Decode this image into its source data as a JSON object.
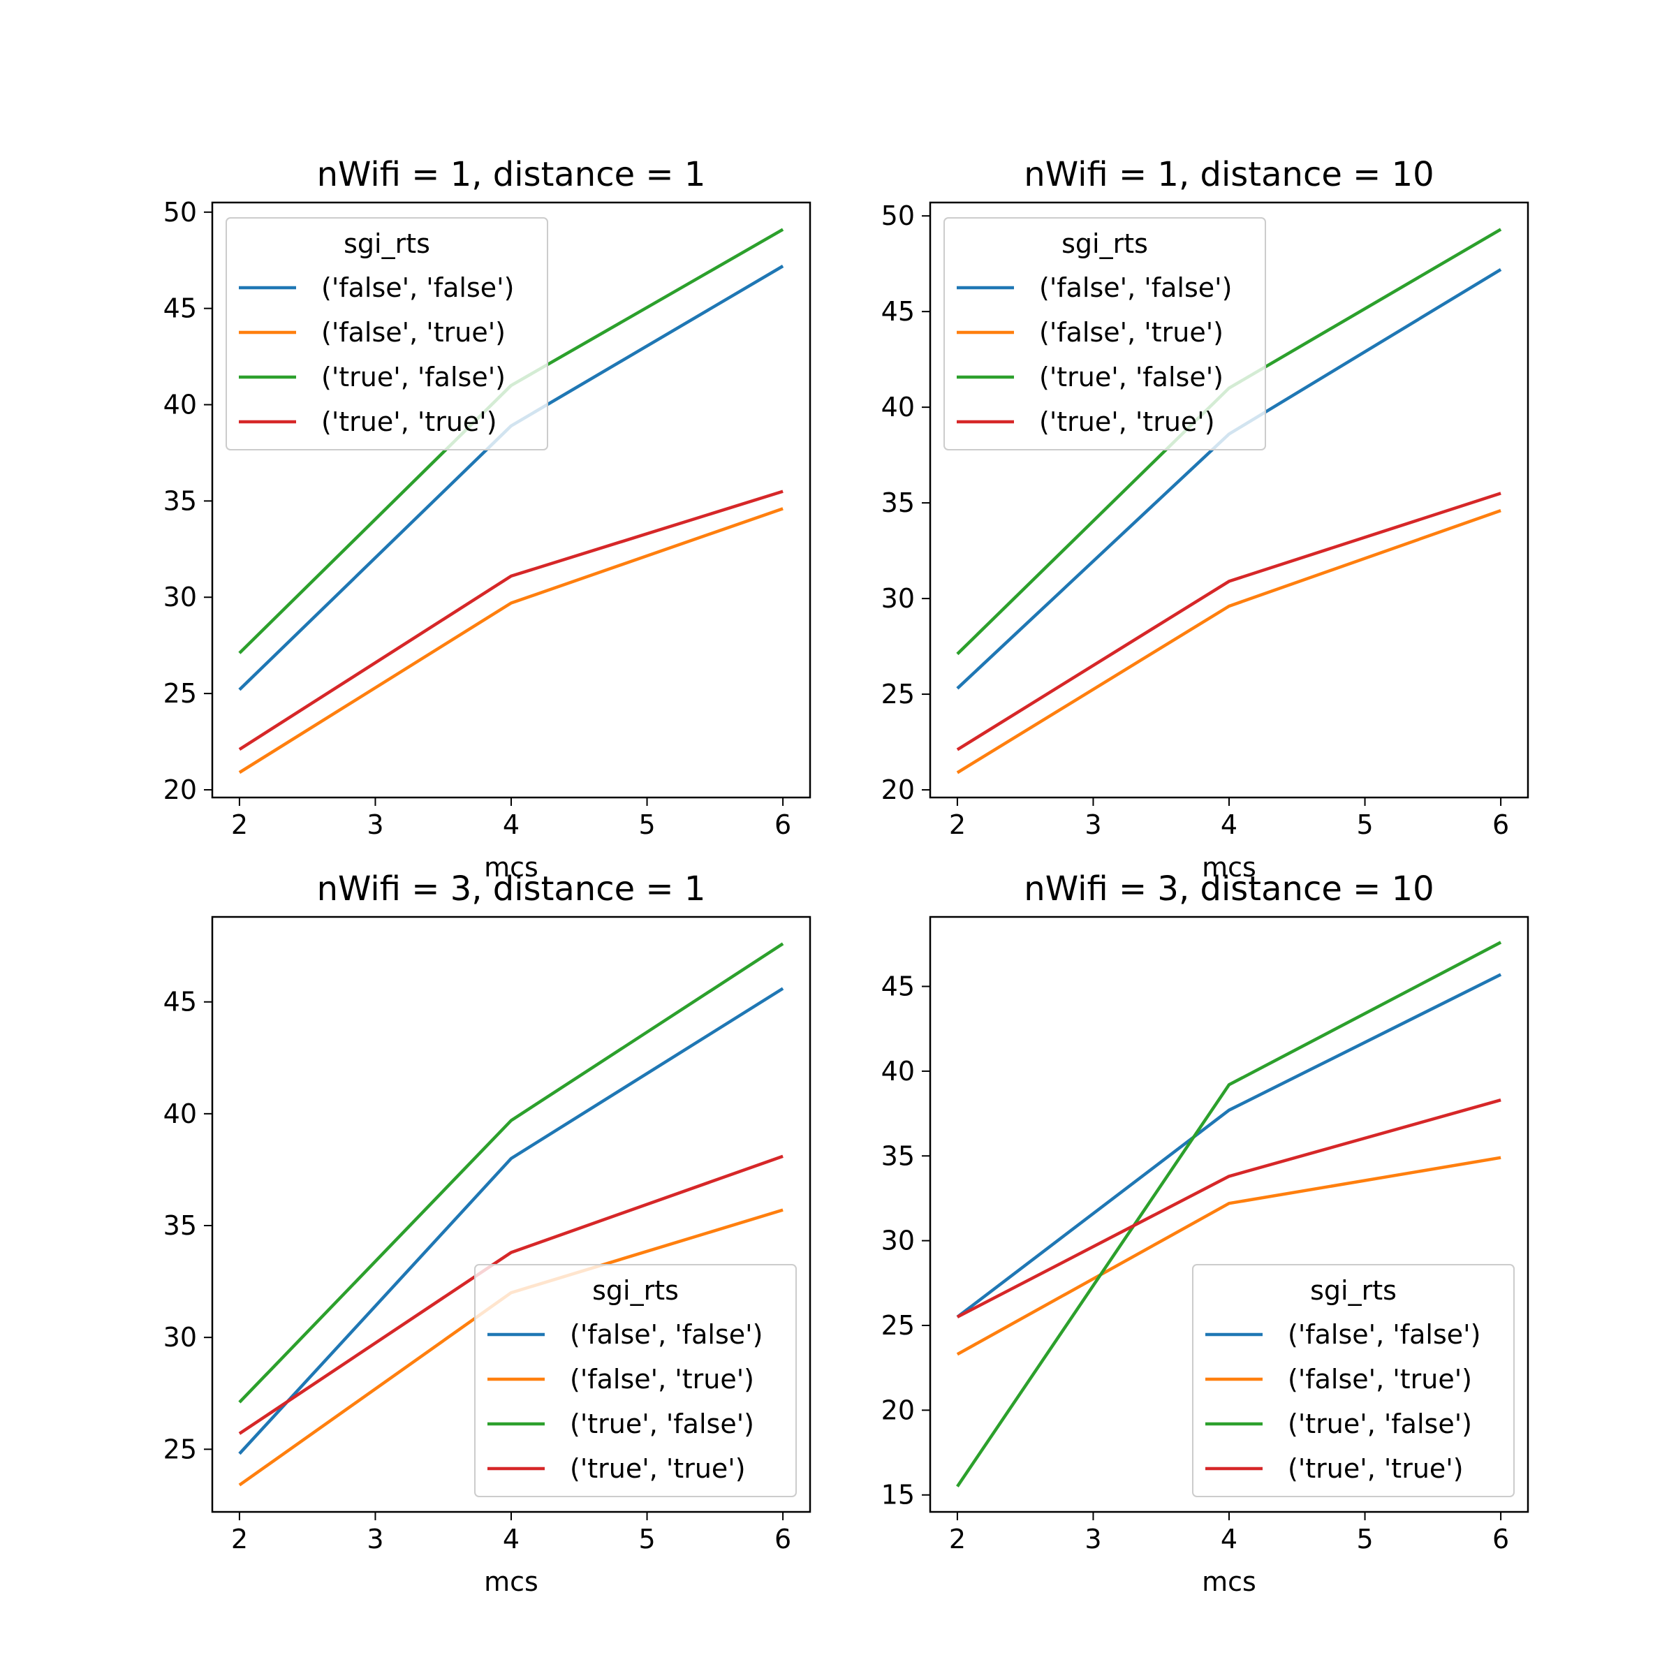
{
  "chart_data": [
    {
      "type": "line",
      "title": "nWifi = 1, distance = 1",
      "xlabel": "mcs",
      "ylabel": "",
      "x": [
        2,
        4,
        6
      ],
      "xticks": [
        2,
        3,
        4,
        5,
        6
      ],
      "yticks": [
        20,
        25,
        30,
        35,
        40,
        45,
        50
      ],
      "xlim": [
        1.8,
        6.2
      ],
      "ylim": [
        19.6,
        50.5
      ],
      "legend": {
        "title": "sgi_rts",
        "placement": "upper-left"
      },
      "series": [
        {
          "name": "('false', 'false')",
          "color": "#1f77b4",
          "values": [
            25.2,
            38.9,
            47.2
          ]
        },
        {
          "name": "('false', 'true')",
          "color": "#ff7f0e",
          "values": [
            20.9,
            29.7,
            34.6
          ]
        },
        {
          "name": "('true', 'false')",
          "color": "#2ca02c",
          "values": [
            27.1,
            41.0,
            49.1
          ]
        },
        {
          "name": "('true', 'true')",
          "color": "#d62728",
          "values": [
            22.1,
            31.1,
            35.5
          ]
        }
      ]
    },
    {
      "type": "line",
      "title": "nWifi = 1, distance = 10",
      "xlabel": "mcs",
      "ylabel": "",
      "x": [
        2,
        4,
        6
      ],
      "xticks": [
        2,
        3,
        4,
        5,
        6
      ],
      "yticks": [
        20,
        25,
        30,
        35,
        40,
        45,
        50
      ],
      "xlim": [
        1.8,
        6.2
      ],
      "ylim": [
        19.6,
        50.7
      ],
      "legend": {
        "title": "sgi_rts",
        "placement": "upper-left"
      },
      "series": [
        {
          "name": "('false', 'false')",
          "color": "#1f77b4",
          "values": [
            25.3,
            38.6,
            47.2
          ]
        },
        {
          "name": "('false', 'true')",
          "color": "#ff7f0e",
          "values": [
            20.9,
            29.6,
            34.6
          ]
        },
        {
          "name": "('true', 'false')",
          "color": "#2ca02c",
          "values": [
            27.1,
            41.0,
            49.3
          ]
        },
        {
          "name": "('true', 'true')",
          "color": "#d62728",
          "values": [
            22.1,
            30.9,
            35.5
          ]
        }
      ]
    },
    {
      "type": "line",
      "title": "nWifi = 3, distance = 1",
      "xlabel": "mcs",
      "ylabel": "",
      "x": [
        2,
        4,
        6
      ],
      "xticks": [
        2,
        3,
        4,
        5,
        6
      ],
      "yticks": [
        25,
        30,
        35,
        40,
        45
      ],
      "xlim": [
        1.8,
        6.2
      ],
      "ylim": [
        22.2,
        48.8
      ],
      "legend": {
        "title": "sgi_rts",
        "placement": "lower-right"
      },
      "series": [
        {
          "name": "('false', 'false')",
          "color": "#1f77b4",
          "values": [
            24.8,
            38.0,
            45.6
          ]
        },
        {
          "name": "('false', 'true')",
          "color": "#ff7f0e",
          "values": [
            23.4,
            32.0,
            35.7
          ]
        },
        {
          "name": "('true', 'false')",
          "color": "#2ca02c",
          "values": [
            27.1,
            39.7,
            47.6
          ]
        },
        {
          "name": "('true', 'true')",
          "color": "#d62728",
          "values": [
            25.7,
            33.8,
            38.1
          ]
        }
      ]
    },
    {
      "type": "line",
      "title": "nWifi = 3, distance = 10",
      "xlabel": "mcs",
      "ylabel": "",
      "x": [
        2,
        4,
        6
      ],
      "xticks": [
        2,
        3,
        4,
        5,
        6
      ],
      "yticks": [
        15,
        20,
        25,
        30,
        35,
        40,
        45
      ],
      "xlim": [
        1.8,
        6.2
      ],
      "ylim": [
        14.0,
        49.1
      ],
      "legend": {
        "title": "sgi_rts",
        "placement": "lower-right"
      },
      "series": [
        {
          "name": "('false', 'false')",
          "color": "#1f77b4",
          "values": [
            25.5,
            37.7,
            45.7
          ]
        },
        {
          "name": "('false', 'true')",
          "color": "#ff7f0e",
          "values": [
            23.3,
            32.2,
            34.9
          ]
        },
        {
          "name": "('true', 'false')",
          "color": "#2ca02c",
          "values": [
            15.5,
            39.2,
            47.6
          ]
        },
        {
          "name": "('true', 'true')",
          "color": "#d62728",
          "values": [
            25.5,
            33.8,
            38.3
          ]
        }
      ]
    }
  ]
}
